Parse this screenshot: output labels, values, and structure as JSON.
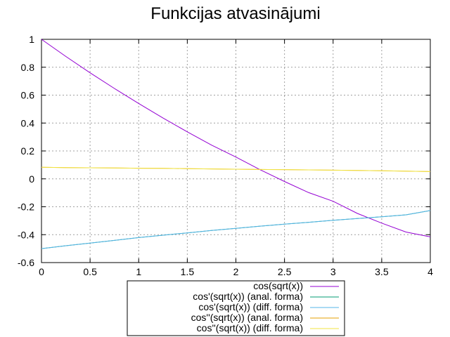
{
  "chart_data": {
    "type": "line",
    "title": "Funkcijas atvasinājumi",
    "xlabel": "",
    "ylabel": "",
    "xlim": [
      0,
      4
    ],
    "ylim": [
      -0.6,
      1
    ],
    "xticks": [
      "0",
      "0.5",
      "1",
      "1.5",
      "2",
      "2.5",
      "3",
      "3.5",
      "4"
    ],
    "yticks": [
      "-0.6",
      "-0.4",
      "-0.2",
      "0",
      "0.2",
      "0.4",
      "0.6",
      "0.8",
      "1"
    ],
    "grid": true,
    "legend_position": "bottom-center",
    "x": [
      0,
      0.25,
      0.5,
      0.75,
      1,
      1.25,
      1.5,
      1.75,
      2,
      2.25,
      2.5,
      2.75,
      3,
      3.25,
      3.5,
      3.75,
      4
    ],
    "series": [
      {
        "name": "cos(sqrt(x))",
        "color": "#9400d3",
        "values": [
          1.0,
          0.877,
          0.76,
          0.648,
          0.54,
          0.436,
          0.337,
          0.242,
          0.156,
          0.065,
          -0.019,
          -0.099,
          -0.161,
          -0.248,
          -0.317,
          -0.381,
          -0.416
        ]
      },
      {
        "name": "cos'(sqrt(x)) (anal. forma)",
        "color": "#009e73",
        "values": [
          -0.5,
          -0.479,
          -0.46,
          -0.441,
          -0.421,
          -0.404,
          -0.387,
          -0.37,
          -0.355,
          -0.339,
          -0.325,
          -0.311,
          -0.297,
          -0.284,
          -0.272,
          -0.258,
          -0.227
        ]
      },
      {
        "name": "cos'(sqrt(x)) (diff. forma)",
        "color": "#56b4e9",
        "values": [
          -0.5,
          -0.479,
          -0.46,
          -0.441,
          -0.421,
          -0.404,
          -0.387,
          -0.37,
          -0.355,
          -0.339,
          -0.325,
          -0.311,
          -0.297,
          -0.284,
          -0.272,
          -0.258,
          -0.227
        ]
      },
      {
        "name": "cos''(sqrt(x)) (anal. forma)",
        "color": "#e69f00",
        "values": [
          0.083,
          0.081,
          0.079,
          0.078,
          0.076,
          0.075,
          0.073,
          0.071,
          0.069,
          0.067,
          0.066,
          0.064,
          0.062,
          0.06,
          0.058,
          0.055,
          0.052
        ]
      },
      {
        "name": "cos''(sqrt(x)) (diff. forma)",
        "color": "#f0e442",
        "values": [
          0.083,
          0.081,
          0.079,
          0.078,
          0.076,
          0.075,
          0.073,
          0.071,
          0.069,
          0.067,
          0.066,
          0.064,
          0.062,
          0.06,
          0.058,
          0.055,
          0.052
        ]
      }
    ]
  }
}
